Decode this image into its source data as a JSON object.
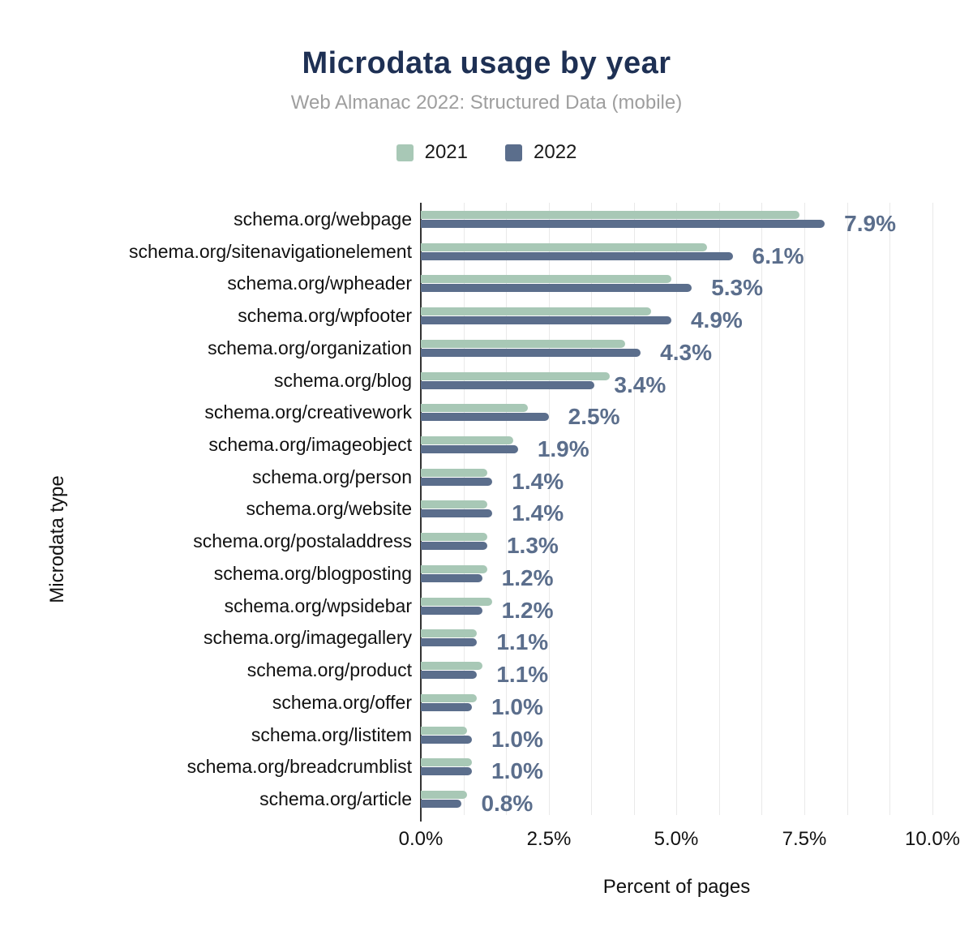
{
  "title": "Microdata usage by year",
  "subtitle": "Web Almanac 2022: Structured Data (mobile)",
  "legend": [
    {
      "label": "2021",
      "color": "#a8c8b6"
    },
    {
      "label": "2022",
      "color": "#5b6e8c"
    }
  ],
  "colors": {
    "series_2021": "#a8c8b6",
    "series_2022": "#5b6e8c",
    "title": "#1e3054",
    "subtitle": "#9e9e9e",
    "value_label": "#5b6e8c",
    "gridline": "#e9e9e9",
    "axis": "#333333"
  },
  "chart_data": {
    "type": "bar",
    "orientation": "horizontal",
    "title": "Microdata usage by year",
    "subtitle": "Web Almanac 2022: Structured Data (mobile)",
    "xlabel": "Percent of pages",
    "ylabel": "Microdata type",
    "xlim": [
      0,
      10
    ],
    "x_ticks": [
      "0.0%",
      "2.5%",
      "5.0%",
      "7.5%",
      "10.0%"
    ],
    "grid": true,
    "legend_position": "top",
    "categories": [
      "schema.org/webpage",
      "schema.org/sitenavigationelement",
      "schema.org/wpheader",
      "schema.org/wpfooter",
      "schema.org/organization",
      "schema.org/blog",
      "schema.org/creativework",
      "schema.org/imageobject",
      "schema.org/person",
      "schema.org/website",
      "schema.org/postaladdress",
      "schema.org/blogposting",
      "schema.org/wpsidebar",
      "schema.org/imagegallery",
      "schema.org/product",
      "schema.org/offer",
      "schema.org/listitem",
      "schema.org/breadcrumblist",
      "schema.org/article"
    ],
    "series": [
      {
        "name": "2021",
        "color": "#a8c8b6",
        "values": [
          7.4,
          5.6,
          4.9,
          4.5,
          4.0,
          3.7,
          2.1,
          1.8,
          1.3,
          1.3,
          1.3,
          1.3,
          1.4,
          1.1,
          1.2,
          1.1,
          0.9,
          1.0,
          0.9
        ]
      },
      {
        "name": "2022",
        "color": "#5b6e8c",
        "values": [
          7.9,
          6.1,
          5.3,
          4.9,
          4.3,
          3.4,
          2.5,
          1.9,
          1.4,
          1.4,
          1.3,
          1.2,
          1.2,
          1.1,
          1.1,
          1.0,
          1.0,
          1.0,
          0.8
        ]
      }
    ],
    "bar_labels": [
      "7.9%",
      "6.1%",
      "5.3%",
      "4.9%",
      "4.3%",
      "3.4%",
      "2.5%",
      "1.9%",
      "1.4%",
      "1.4%",
      "1.3%",
      "1.2%",
      "1.2%",
      "1.1%",
      "1.1%",
      "1.0%",
      "1.0%",
      "1.0%",
      "0.8%"
    ]
  }
}
